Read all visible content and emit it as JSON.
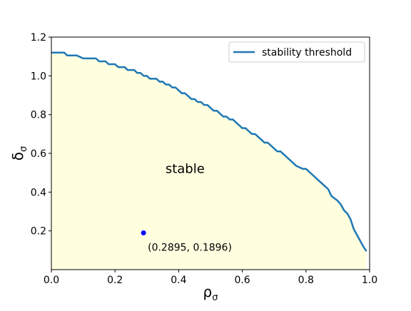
{
  "colors": {
    "curve": "#1f77b4",
    "fill": "#ffffe0",
    "point": "#0000ff",
    "legend_border": "#cccccc"
  },
  "chart_data": {
    "type": "line",
    "xlabel": "ρ",
    "xlabel_sub": "σ",
    "ylabel": "δ",
    "ylabel_sub": "σ",
    "xlim": [
      0.0,
      1.0
    ],
    "ylim": [
      0.0,
      1.2
    ],
    "xticks": [
      "0.0",
      "0.2",
      "0.4",
      "0.6",
      "0.8",
      "1.0"
    ],
    "yticks": [
      "0.2",
      "0.4",
      "0.6",
      "0.8",
      "1.0",
      "1.2"
    ],
    "grid": false,
    "legend": {
      "position": "top-right",
      "entries": [
        "stability threshold"
      ]
    },
    "series": [
      {
        "name": "stability threshold",
        "fill_below": true,
        "x": [
          0.0,
          0.04,
          0.05,
          0.08,
          0.1,
          0.14,
          0.15,
          0.17,
          0.18,
          0.2,
          0.21,
          0.23,
          0.24,
          0.26,
          0.27,
          0.28,
          0.29,
          0.3,
          0.31,
          0.33,
          0.34,
          0.35,
          0.36,
          0.37,
          0.38,
          0.39,
          0.4,
          0.41,
          0.42,
          0.43,
          0.44,
          0.45,
          0.46,
          0.47,
          0.48,
          0.49,
          0.5,
          0.51,
          0.52,
          0.53,
          0.54,
          0.55,
          0.56,
          0.57,
          0.58,
          0.59,
          0.6,
          0.61,
          0.62,
          0.63,
          0.64,
          0.65,
          0.66,
          0.67,
          0.68,
          0.69,
          0.7,
          0.71,
          0.72,
          0.73,
          0.75,
          0.77,
          0.79,
          0.8,
          0.82,
          0.84,
          0.86,
          0.87,
          0.88,
          0.9,
          0.91,
          0.92,
          0.93,
          0.94,
          0.95,
          0.96,
          0.97,
          0.98,
          0.99
        ],
        "y": [
          1.12,
          1.12,
          1.105,
          1.105,
          1.09,
          1.09,
          1.075,
          1.075,
          1.06,
          1.06,
          1.045,
          1.045,
          1.03,
          1.03,
          1.015,
          1.015,
          1.0,
          1.0,
          0.985,
          0.985,
          0.97,
          0.97,
          0.955,
          0.955,
          0.94,
          0.94,
          0.925,
          0.91,
          0.91,
          0.895,
          0.88,
          0.88,
          0.865,
          0.865,
          0.85,
          0.85,
          0.835,
          0.82,
          0.82,
          0.805,
          0.79,
          0.79,
          0.775,
          0.775,
          0.76,
          0.745,
          0.73,
          0.73,
          0.715,
          0.7,
          0.7,
          0.685,
          0.67,
          0.655,
          0.655,
          0.64,
          0.625,
          0.61,
          0.61,
          0.595,
          0.565,
          0.535,
          0.52,
          0.52,
          0.49,
          0.46,
          0.43,
          0.415,
          0.38,
          0.355,
          0.335,
          0.305,
          0.29,
          0.26,
          0.21,
          0.18,
          0.15,
          0.12,
          0.095
        ]
      }
    ],
    "region_label": "stable",
    "region_label_at": [
      0.42,
      0.52
    ],
    "marked_point": {
      "x": 0.2895,
      "y": 0.1896,
      "label": "(0.2895, 0.1896)"
    }
  }
}
